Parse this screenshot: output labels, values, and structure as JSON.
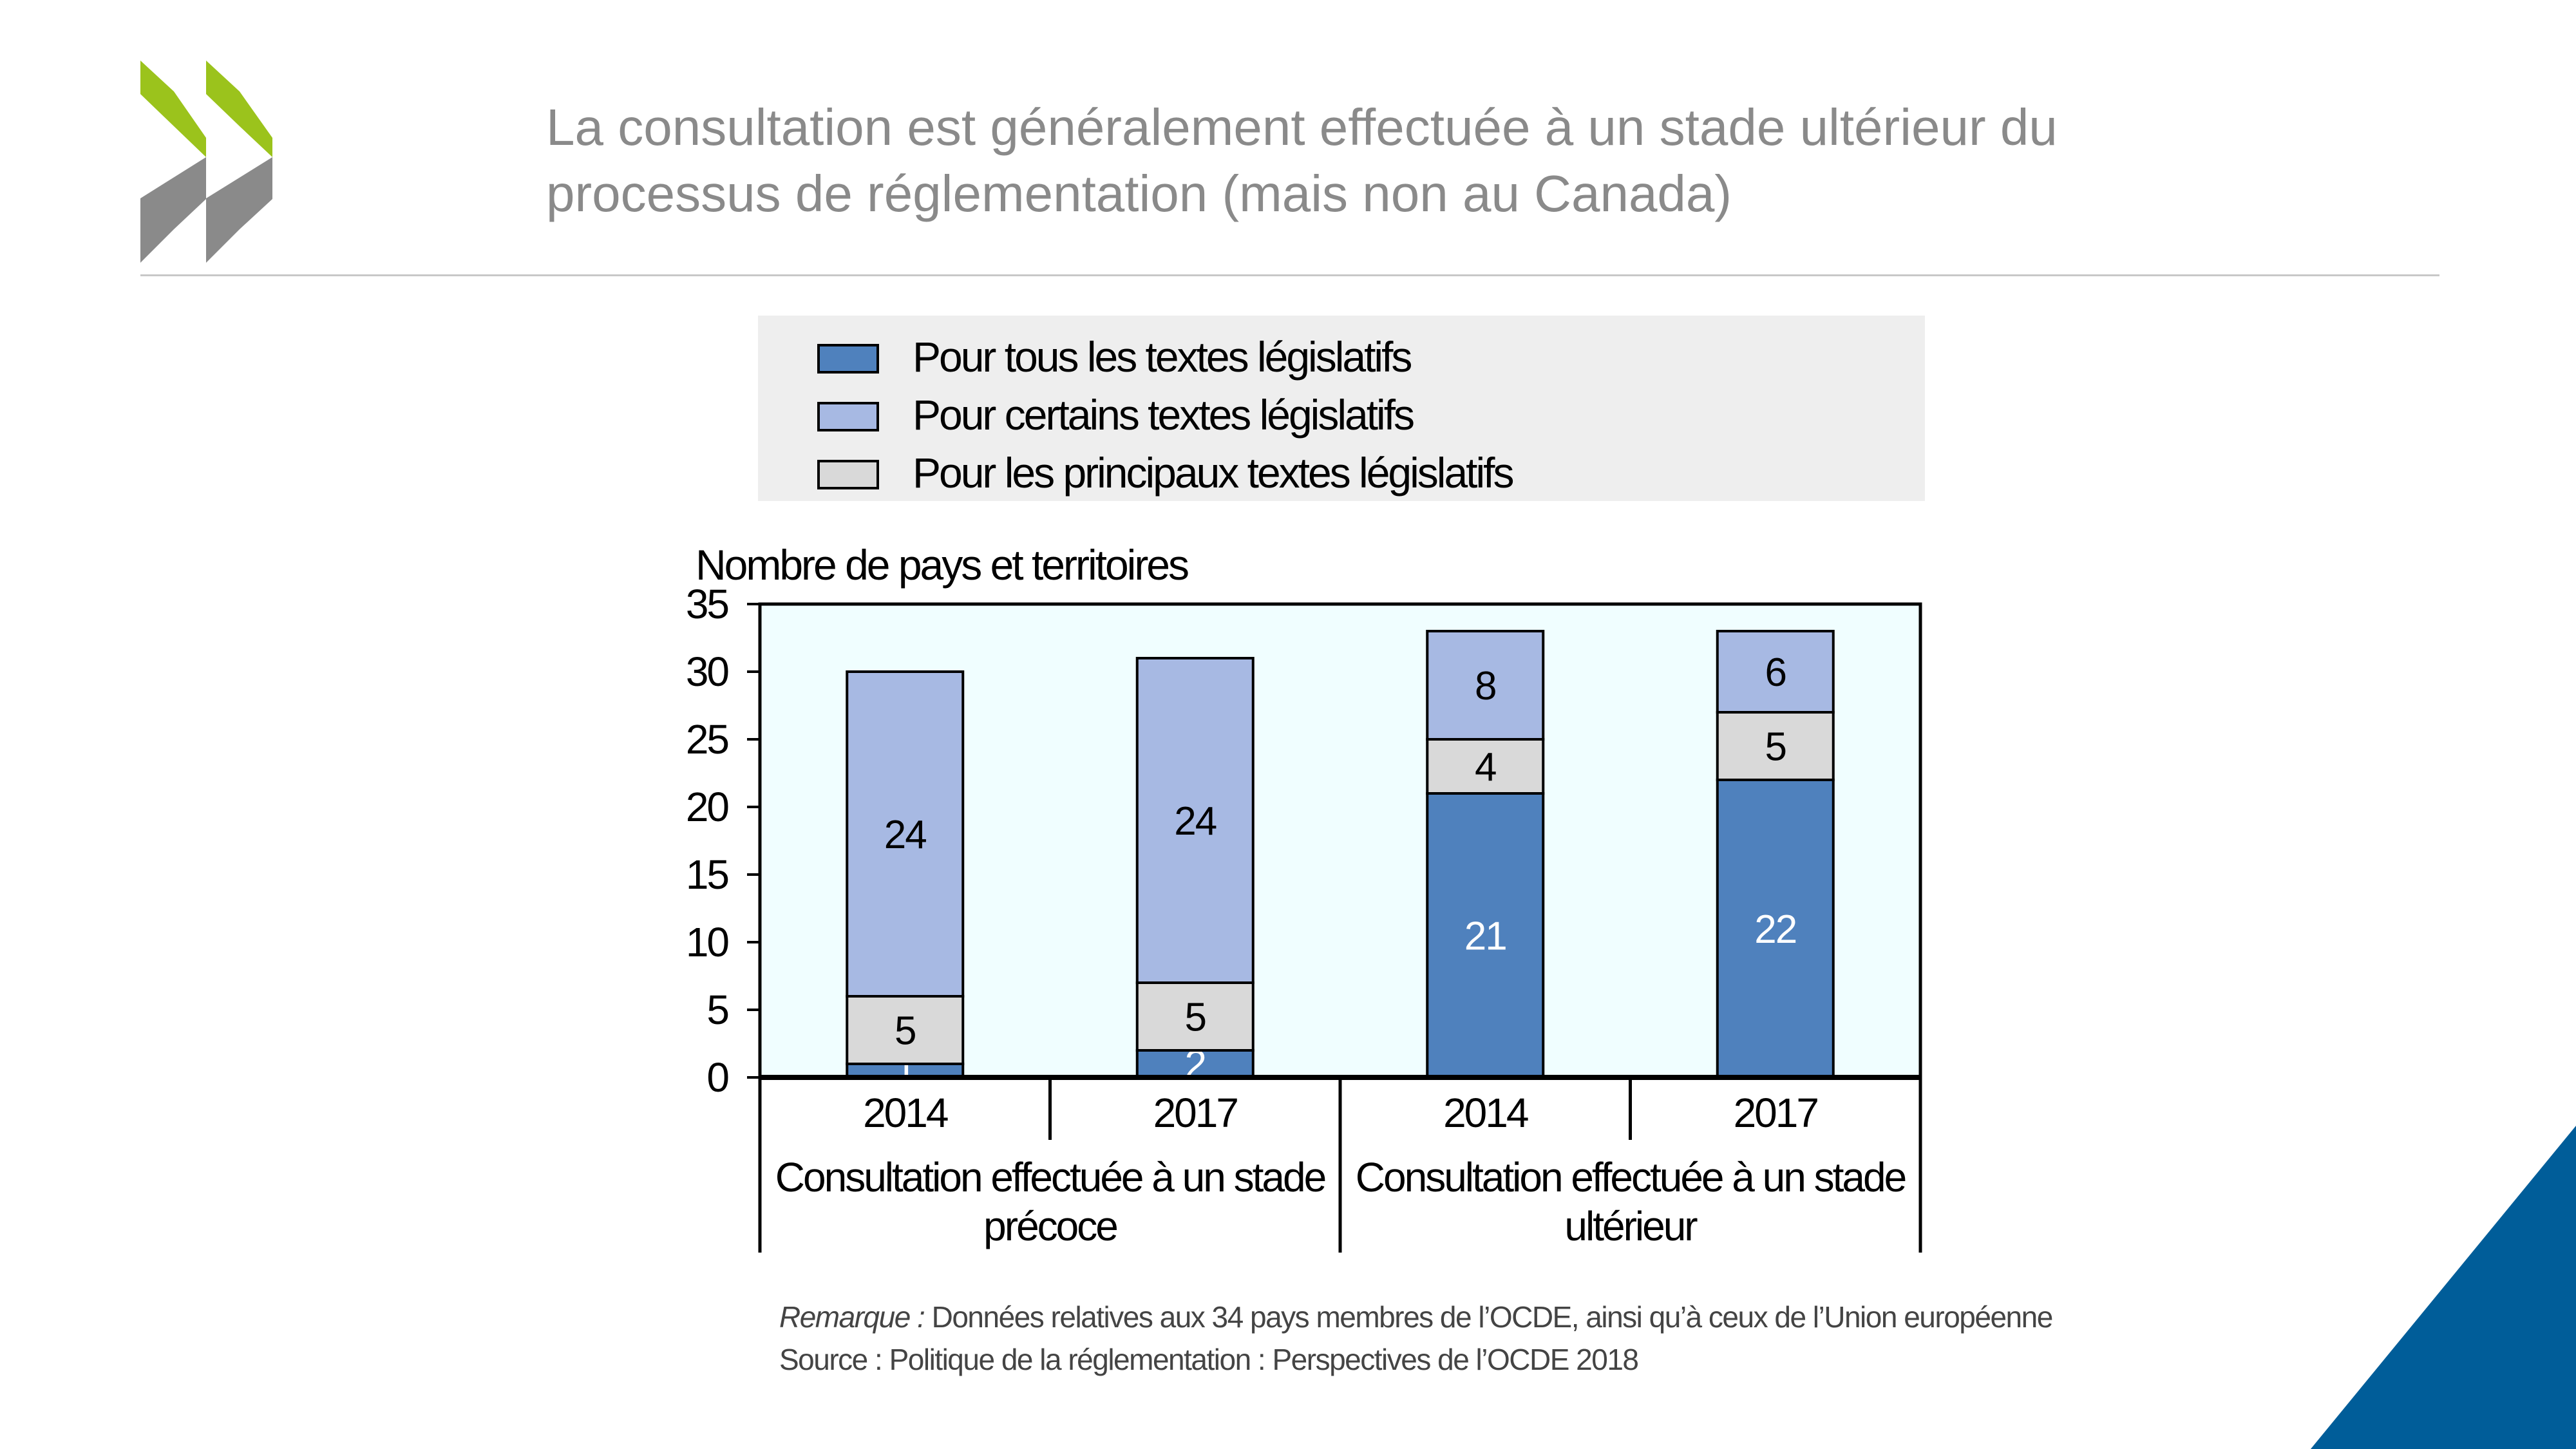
{
  "header": {
    "title_line1": "La consultation est généralement effectuée à un stade ultérieur du",
    "title_line2": "processus de réglementation (mais non au Canada)",
    "logo_icon": "oecd-chevrons-logo"
  },
  "colors": {
    "series_all": "#4f81bd",
    "series_some": "#a7b9e3",
    "series_major": "#d9d9d9",
    "plot_bg": "#f0feff",
    "logo_green": "#9bc31c",
    "logo_gray": "#8a8a8a",
    "corner_blue": "#005d99"
  },
  "legend": [
    {
      "label": "Pour tous les textes législatifs",
      "color": "#4f81bd"
    },
    {
      "label": "Pour certains textes législatifs",
      "color": "#a7b9e3"
    },
    {
      "label": "Pour les principaux textes législatifs",
      "color": "#d9d9d9"
    }
  ],
  "chart_data": {
    "type": "bar",
    "stacked": true,
    "title": "",
    "ylabel": "Nombre de pays et territoires",
    "ylim": [
      0,
      35
    ],
    "yticks": [
      0,
      5,
      10,
      15,
      20,
      25,
      30,
      35
    ],
    "grid": false,
    "legend_position": "top",
    "categories": [
      "2014",
      "2017",
      "2014",
      "2017"
    ],
    "groups": [
      {
        "label": [
          "Consultation effectuée à un stade",
          "précoce"
        ],
        "categories": [
          0,
          1
        ]
      },
      {
        "label": [
          "Consultation effectuée à un stade",
          "ultérieur"
        ],
        "categories": [
          2,
          3
        ]
      }
    ],
    "series": [
      {
        "name": "Pour tous les textes législatifs",
        "values": [
          1,
          2,
          21,
          22
        ]
      },
      {
        "name": "Pour les principaux textes législatifs",
        "values": [
          5,
          5,
          4,
          5
        ]
      },
      {
        "name": "Pour certains textes législatifs",
        "values": [
          24,
          24,
          8,
          6
        ]
      }
    ]
  },
  "notes": {
    "remark_prefix": "Remarque :",
    "remark_text": " Données relatives aux 34 pays membres de l’OCDE, ainsi qu’à ceux de l’Union européenne",
    "source": "Source : Politique de la réglementation : Perspectives de l’OCDE 2018"
  }
}
